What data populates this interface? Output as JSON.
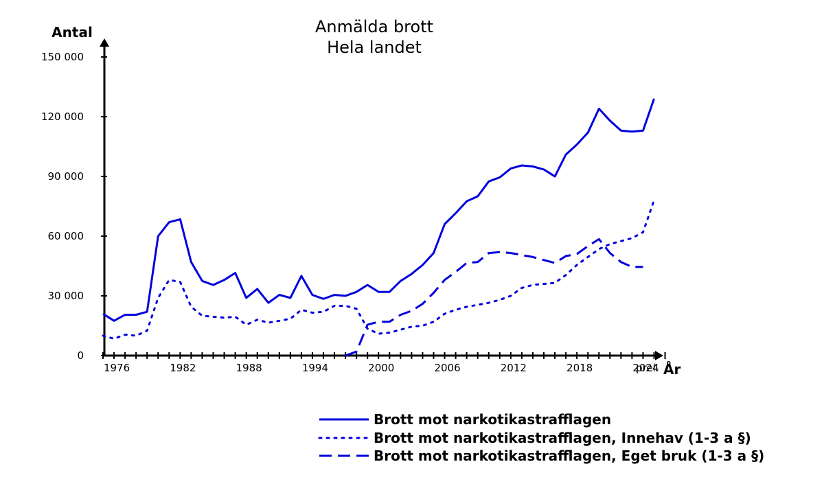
{
  "chart_data": {
    "type": "line",
    "title": "Anmälda brott",
    "subtitle": "Hela landet",
    "ylabel": "Antal",
    "xlabel": "År",
    "x_extra_label": "prel.",
    "x_tick_labels": [
      "1976",
      "1982",
      "1988",
      "1994",
      "2000",
      "2006",
      "2012",
      "2018",
      "2024"
    ],
    "x_tick_values": [
      1976,
      1982,
      1988,
      1994,
      2000,
      2006,
      2012,
      2018,
      2024
    ],
    "y_tick_labels": [
      "0",
      "30 000",
      "60 000",
      "90 000",
      "120 000",
      "150 000"
    ],
    "y_tick_values": [
      0,
      30000,
      60000,
      90000,
      120000,
      150000
    ],
    "xlim": [
      1975,
      2027
    ],
    "ylim": [
      0,
      150000
    ],
    "grid": false,
    "legend_position": "bottom-right",
    "color": "#0000dd",
    "series": [
      {
        "name": "Brott mot narkotikastrafflagen",
        "style": "solid",
        "x": [
          1975,
          1976,
          1977,
          1978,
          1979,
          1980,
          1981,
          1982,
          1983,
          1984,
          1985,
          1986,
          1987,
          1988,
          1989,
          1990,
          1991,
          1992,
          1993,
          1994,
          1995,
          1996,
          1997,
          1998,
          1999,
          2000,
          2001,
          2002,
          2003,
          2004,
          2005,
          2006,
          2007,
          2008,
          2009,
          2010,
          2011,
          2012,
          2013,
          2014,
          2015,
          2016,
          2017,
          2018,
          2019,
          2020,
          2021,
          2022,
          2023,
          2024,
          2025
        ],
        "values": [
          21000,
          17500,
          20500,
          20500,
          22000,
          60000,
          67000,
          68500,
          47000,
          37500,
          35500,
          38000,
          41500,
          29000,
          33500,
          26500,
          30500,
          29000,
          40000,
          30500,
          28500,
          30500,
          30000,
          32000,
          35500,
          32000,
          32000,
          37500,
          41000,
          45500,
          51500,
          66000,
          71500,
          77500,
          80000,
          87500,
          89500,
          94000,
          95500,
          95000,
          93500,
          90000,
          101000,
          106000,
          112000,
          124000,
          118000,
          113000,
          112500,
          113000,
          129000
        ]
      },
      {
        "name": "Brott mot narkotikastrafflagen, Innehav (1-3 a §)",
        "style": "dotted",
        "x": [
          1975,
          1976,
          1977,
          1978,
          1979,
          1980,
          1981,
          1982,
          1983,
          1984,
          1985,
          1986,
          1987,
          1988,
          1989,
          1990,
          1991,
          1992,
          1993,
          1994,
          1995,
          1996,
          1997,
          1998,
          1999,
          2000,
          2001,
          2002,
          2003,
          2004,
          2005,
          2006,
          2007,
          2008,
          2009,
          2010,
          2011,
          2012,
          2013,
          2014,
          2015,
          2016,
          2017,
          2018,
          2019,
          2020,
          2021,
          2022,
          2023,
          2024,
          2025
        ],
        "values": [
          10000,
          8500,
          10500,
          10000,
          12500,
          29000,
          38000,
          37000,
          24500,
          20000,
          19500,
          19000,
          19500,
          15500,
          18000,
          16500,
          17500,
          18500,
          23000,
          21500,
          22000,
          25000,
          25000,
          23500,
          13500,
          11000,
          11500,
          13000,
          14500,
          15000,
          17000,
          21000,
          23000,
          24500,
          25500,
          26500,
          28000,
          30000,
          34000,
          35500,
          36000,
          36500,
          40500,
          45500,
          49500,
          53500,
          56000,
          57500,
          59000,
          62000,
          78000
        ]
      },
      {
        "name": "Brott mot narkotikastrafflagen, Eget bruk (1-3 a §)",
        "style": "dashed",
        "x": [
          1997,
          1998,
          1999,
          2000,
          2001,
          2002,
          2003,
          2004,
          2005,
          2006,
          2007,
          2008,
          2009,
          2010,
          2011,
          2012,
          2013,
          2014,
          2015,
          2016,
          2017,
          2018,
          2019,
          2020,
          2021,
          2022,
          2023,
          2024
        ],
        "values": [
          0,
          2000,
          15500,
          17000,
          17000,
          20500,
          22500,
          26000,
          31500,
          38000,
          42000,
          46500,
          47000,
          51500,
          52000,
          51500,
          50500,
          49500,
          48000,
          46500,
          50000,
          51000,
          55000,
          58500,
          51500,
          47000,
          44500,
          44500
        ]
      }
    ]
  }
}
